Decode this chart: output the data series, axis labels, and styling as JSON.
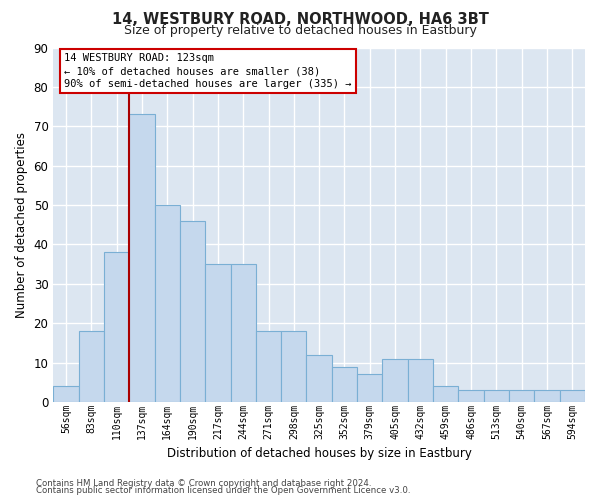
{
  "title1": "14, WESTBURY ROAD, NORTHWOOD, HA6 3BT",
  "title2": "Size of property relative to detached houses in Eastbury",
  "xlabel": "Distribution of detached houses by size in Eastbury",
  "ylabel": "Number of detached properties",
  "categories": [
    "56sqm",
    "83sqm",
    "110sqm",
    "137sqm",
    "164sqm",
    "190sqm",
    "217sqm",
    "244sqm",
    "271sqm",
    "298sqm",
    "325sqm",
    "352sqm",
    "379sqm",
    "405sqm",
    "432sqm",
    "459sqm",
    "486sqm",
    "513sqm",
    "540sqm",
    "567sqm",
    "594sqm"
  ],
  "values": [
    4,
    18,
    38,
    73,
    50,
    46,
    35,
    35,
    18,
    18,
    12,
    9,
    7,
    11,
    11,
    4,
    3,
    3,
    3,
    3,
    3
  ],
  "bar_color": "#c5d8ed",
  "bar_edge_color": "#7aafd4",
  "bg_color": "#dce6f1",
  "grid_color": "#ffffff",
  "vline_color": "#aa0000",
  "annotation_text": "14 WESTBURY ROAD: 123sqm\n← 10% of detached houses are smaller (38)\n90% of semi-detached houses are larger (335) →",
  "annotation_box_color": "#cc0000",
  "ylim": [
    0,
    90
  ],
  "yticks": [
    0,
    10,
    20,
    30,
    40,
    50,
    60,
    70,
    80,
    90
  ],
  "footer1": "Contains HM Land Registry data © Crown copyright and database right 2024.",
  "footer2": "Contains public sector information licensed under the Open Government Licence v3.0."
}
